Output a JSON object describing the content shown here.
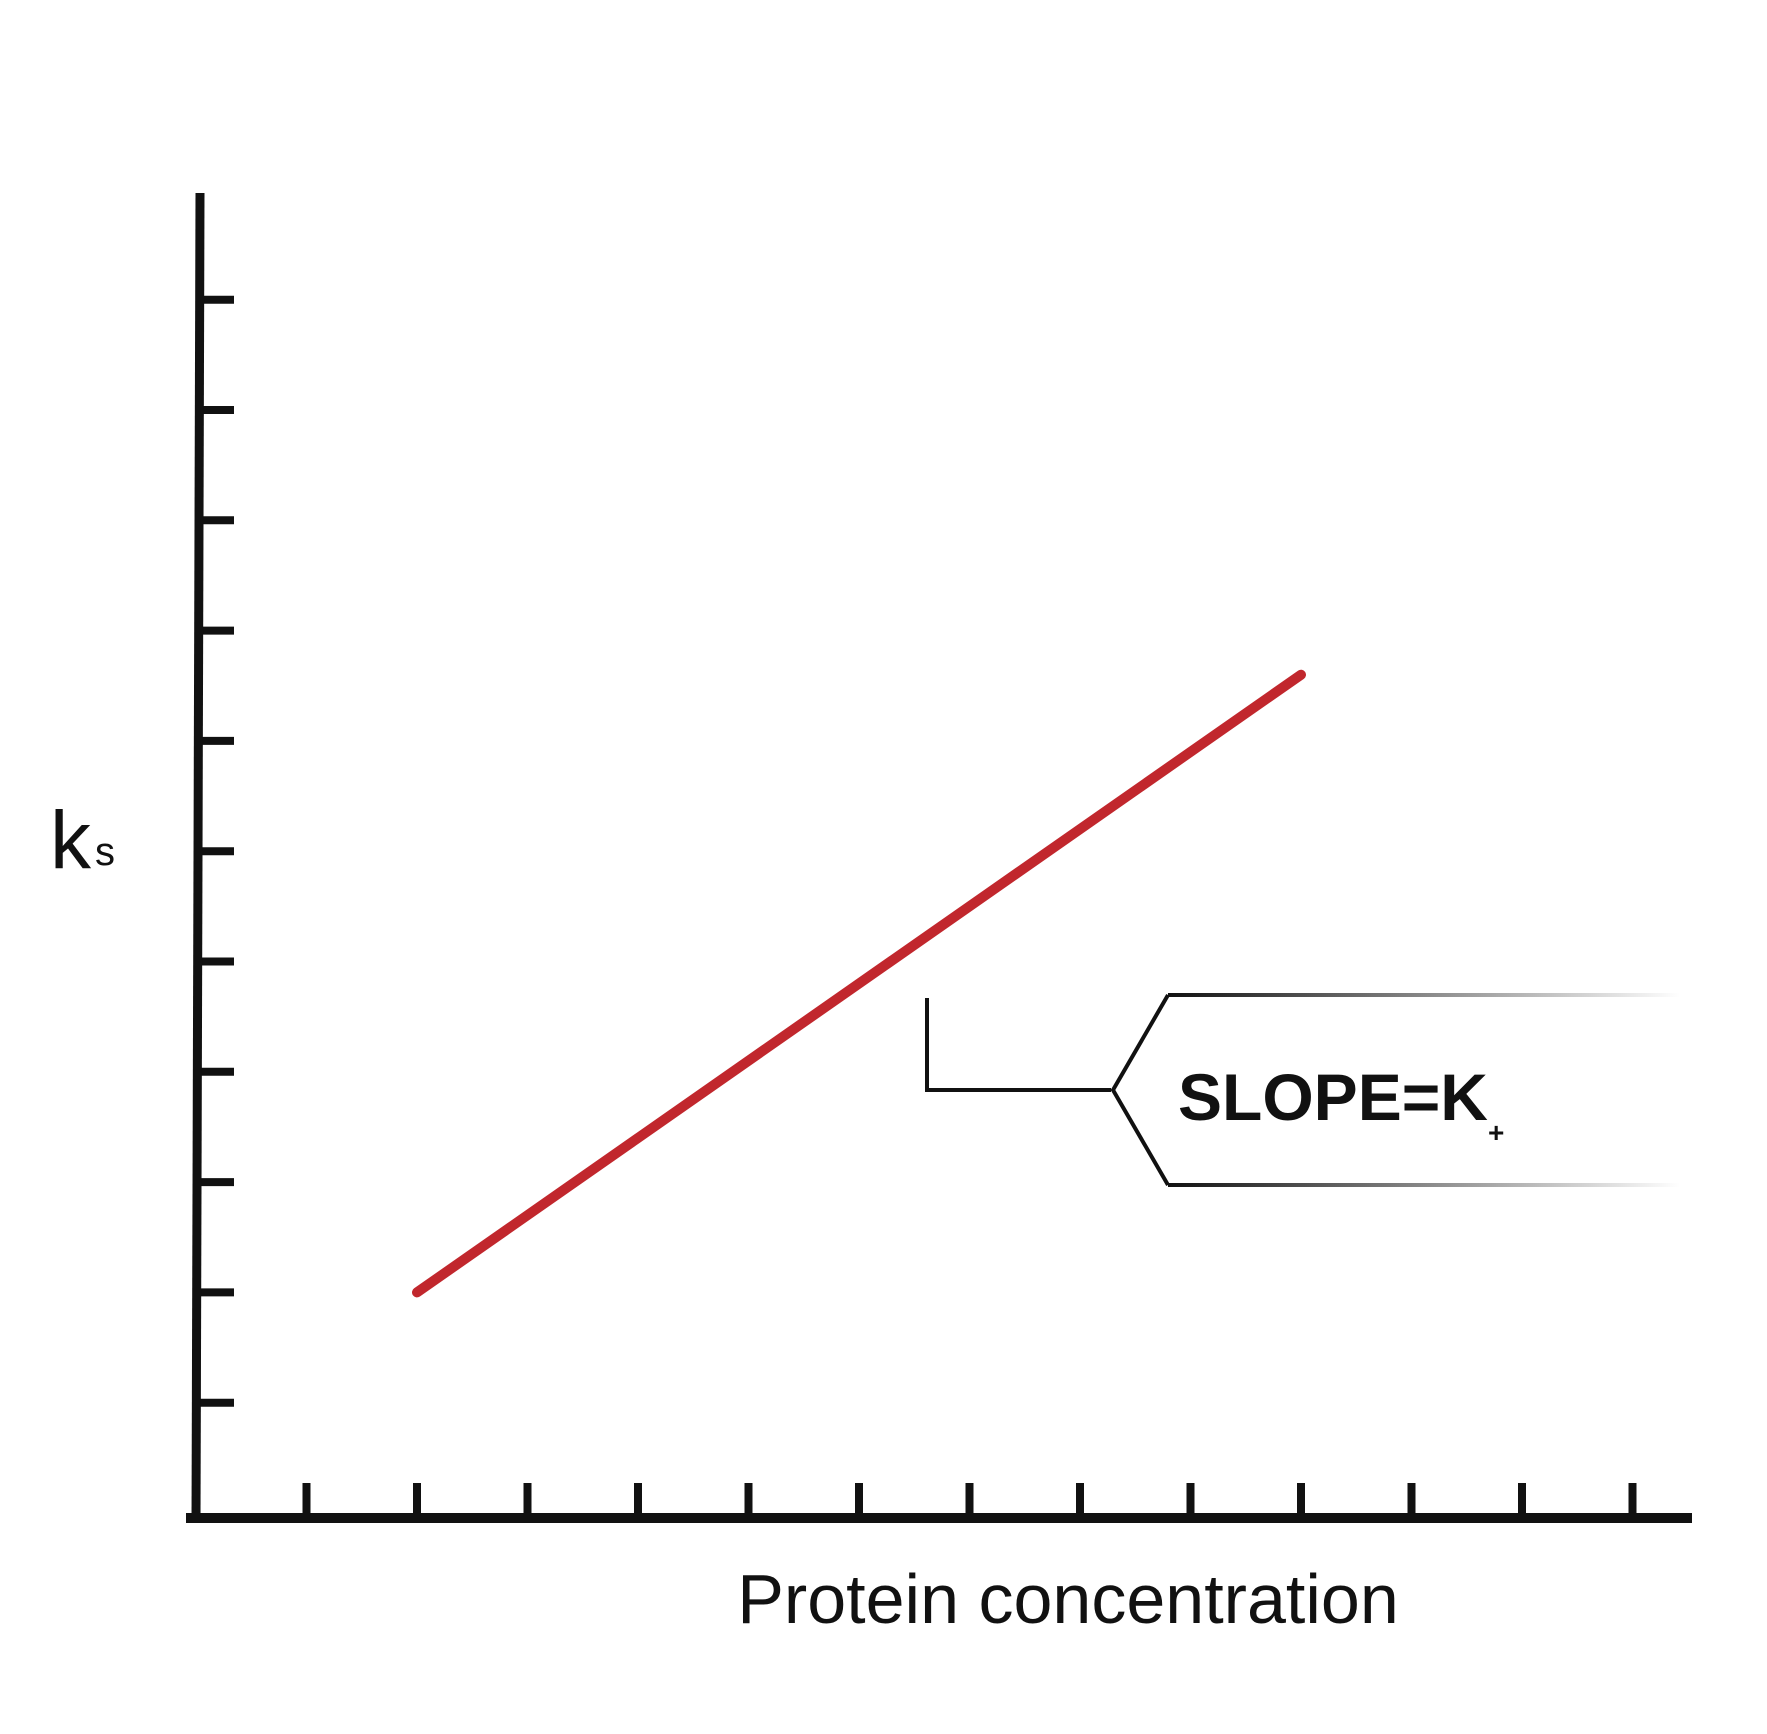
{
  "chart_data": {
    "type": "line",
    "title": "",
    "xlabel": "Protein concentration",
    "ylabel": "k",
    "ylabel_subscript": "s",
    "xlim": [
      0,
      13
    ],
    "ylim": [
      0,
      12
    ],
    "x_ticks": [
      1,
      2,
      3,
      4,
      5,
      6,
      7,
      8,
      9,
      10,
      11,
      12,
      13
    ],
    "y_ticks": [
      1,
      2,
      3,
      4,
      5,
      6,
      7,
      8,
      9,
      10,
      11
    ],
    "grid": false,
    "series": [
      {
        "x": [
          2,
          10
        ],
        "y": [
          2,
          7.6
        ],
        "color": "#c1272d"
      }
    ],
    "annotation": {
      "text": "SLOPE=K",
      "subscript": "+"
    }
  }
}
